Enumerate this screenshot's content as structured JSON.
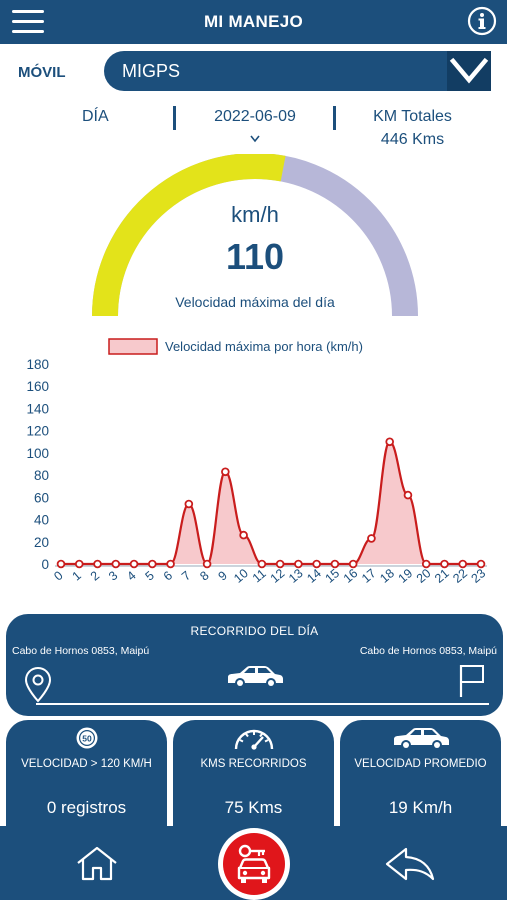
{
  "header": {
    "title": "MI MANEJO"
  },
  "vehicle": {
    "label": "MÓVIL",
    "selected": "MIGPS"
  },
  "info_row": {
    "day_label": "DÍA",
    "date": "2022-06-09",
    "km_title": "KM Totales",
    "km_value": "446 Kms"
  },
  "gauge": {
    "unit": "km/h",
    "value": "110",
    "caption": "Velocidad máxima del día",
    "colors": {
      "filled": "#e3e31a",
      "empty": "#b7b7d8"
    },
    "fraction": 0.56
  },
  "chart_data": {
    "type": "line",
    "legend": "Velocidad máxima por hora (km/h)",
    "x": [
      0,
      1,
      2,
      3,
      4,
      5,
      6,
      7,
      8,
      9,
      10,
      11,
      12,
      13,
      14,
      15,
      16,
      17,
      18,
      19,
      20,
      21,
      22,
      23
    ],
    "series": [
      {
        "name": "Velocidad máxima por hora (km/h)",
        "values": [
          0,
          0,
          0,
          0,
          0,
          0,
          0,
          54,
          0,
          83,
          26,
          0,
          0,
          0,
          0,
          0,
          0,
          23,
          110,
          62,
          0,
          0,
          0,
          0
        ]
      }
    ],
    "ylim": [
      0,
      180
    ],
    "yticks": [
      0,
      20,
      40,
      60,
      80,
      100,
      120,
      140,
      160,
      180
    ],
    "colors": {
      "line": "#c91d1d",
      "fill": "#f7c9cc"
    }
  },
  "route": {
    "title": "RECORRIDO DEL DÍA",
    "from": "Cabo de Hornos 0853, Maipú",
    "to": "Cabo de Hornos 0853, Maipú"
  },
  "stats": [
    {
      "label": "VELOCIDAD > 120 KM/H",
      "value": "0 registros",
      "icon": "speed-limit-50-icon",
      "badge": "50"
    },
    {
      "label": "KMS RECORRIDOS",
      "value": "75 Kms",
      "icon": "speedometer-icon"
    },
    {
      "label": "VELOCIDAD PROMEDIO",
      "value": "19 Km/h",
      "icon": "car-icon"
    }
  ],
  "colors": {
    "primary": "#1c4f7c",
    "accent": "#e0161b"
  }
}
